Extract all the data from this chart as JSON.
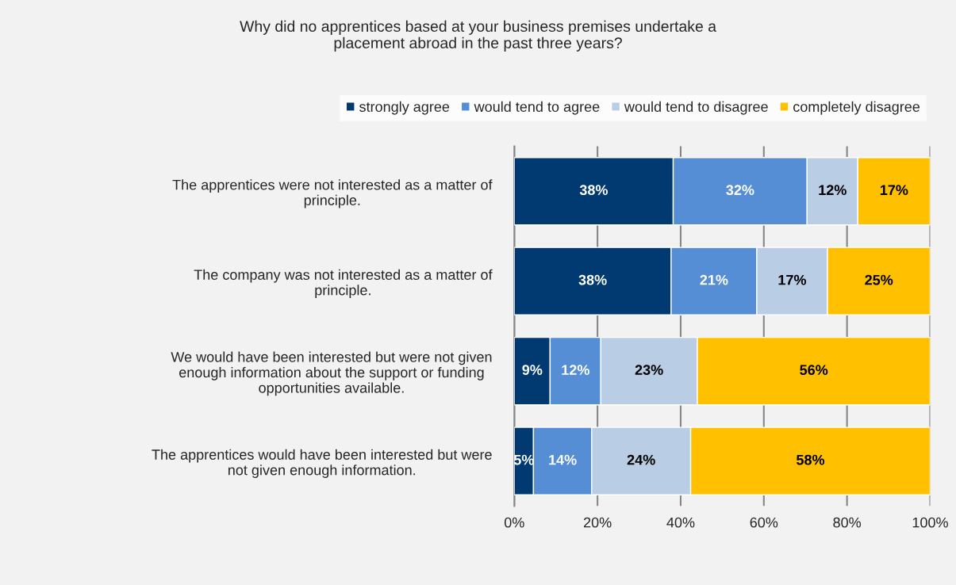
{
  "chart_data": {
    "type": "bar",
    "orientation": "horizontal",
    "stacked": true,
    "title": "Why did no apprentices based at your business premises undertake a\nplacement abroad in the past three years?",
    "categories": [
      "The apprentices were not interested as a matter of\nprinciple.",
      "The company was not interested as a matter of\nprinciple.",
      "We would have been interested but were not given\nenough information about the support or funding\nopportunities available.",
      "The apprentices would have been interested but were\nnot given enough information."
    ],
    "series": [
      {
        "name": "strongly agree",
        "color": "#003a70",
        "values": [
          38.2,
          37.7,
          8.6,
          4.6
        ],
        "value_labels": [
          "38%",
          "38%",
          "9%",
          "5%"
        ]
      },
      {
        "name": "would tend to agree",
        "color": "#558ed5",
        "values": [
          32.2,
          20.6,
          12.2,
          14.0
        ],
        "value_labels": [
          "32%",
          "21%",
          "12%",
          "14%"
        ]
      },
      {
        "name": "would tend to disagree",
        "color": "#b9cde5",
        "values": [
          12.2,
          17.0,
          23.2,
          23.8
        ],
        "value_labels": [
          "12%",
          "17%",
          "23%",
          "24%"
        ]
      },
      {
        "name": "completely disagree",
        "color": "#ffc000",
        "values": [
          17.4,
          24.7,
          56.0,
          57.6
        ],
        "value_labels": [
          "17%",
          "25%",
          "56%",
          "58%"
        ]
      }
    ],
    "xlim": [
      0,
      100
    ],
    "xticks": [
      {
        "value": 0,
        "label": "0%"
      },
      {
        "value": 20,
        "label": "20%"
      },
      {
        "value": 40,
        "label": "40%"
      },
      {
        "value": 60,
        "label": "60%"
      },
      {
        "value": 80,
        "label": "80%"
      },
      {
        "value": 100,
        "label": "100%"
      }
    ],
    "grid": "x",
    "legend": "top"
  }
}
